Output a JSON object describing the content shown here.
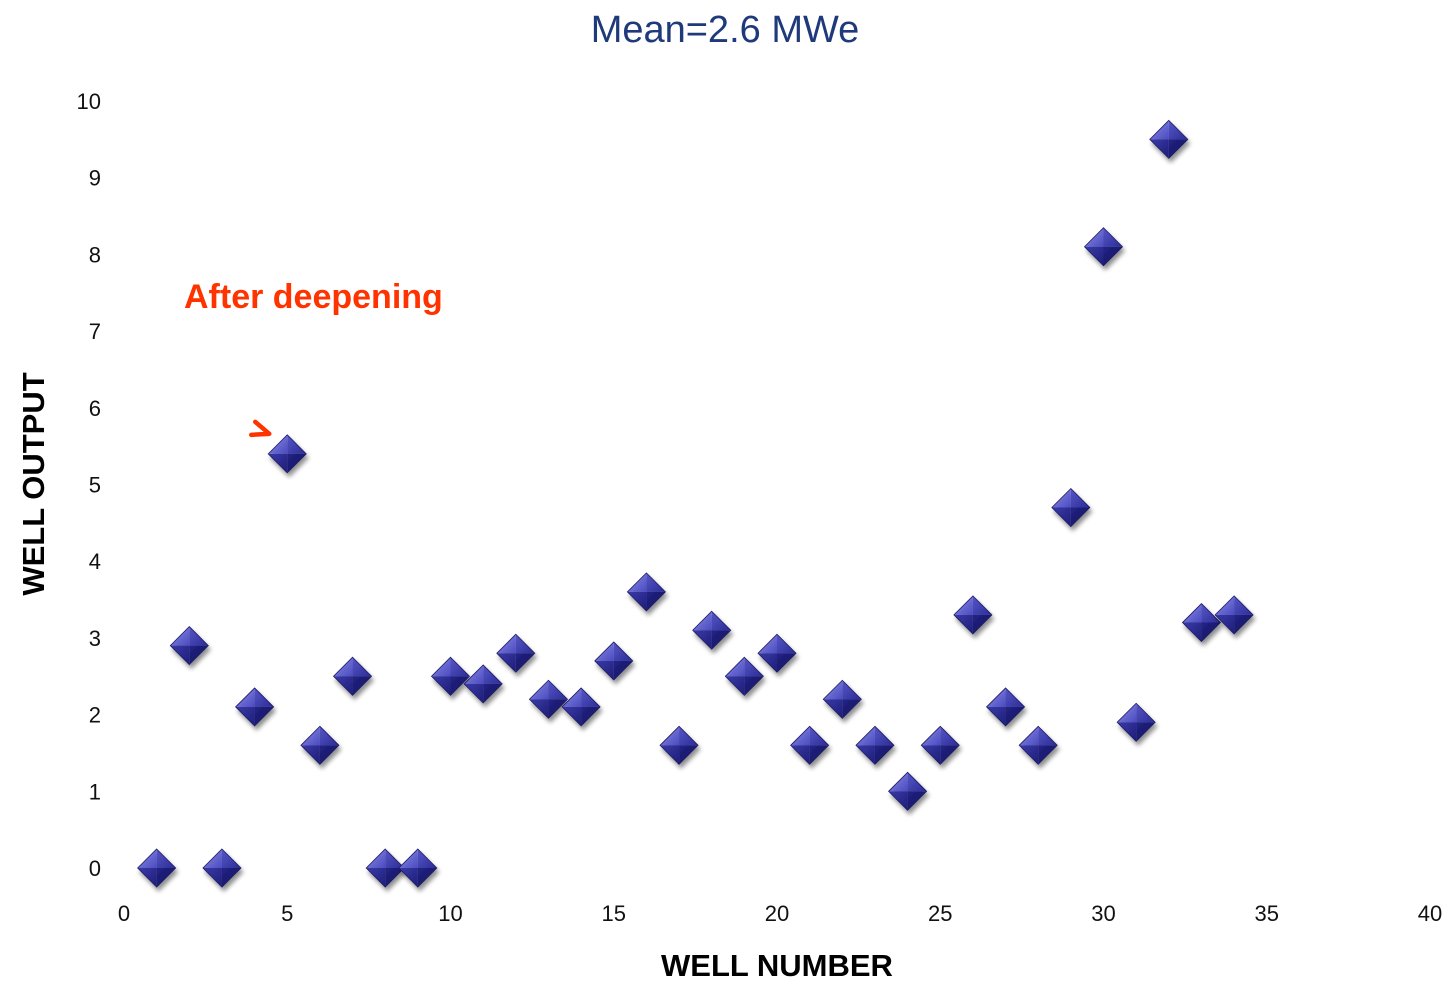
{
  "chart_data": {
    "type": "scatter",
    "title": "Mean=2.6 MWe",
    "xlabel": "WELL NUMBER",
    "ylabel": "WELL OUTPUT",
    "xlim": [
      0,
      40
    ],
    "ylim": [
      0,
      10
    ],
    "x_ticks": [
      0,
      5,
      10,
      15,
      20,
      25,
      30,
      35,
      40
    ],
    "y_ticks": [
      0,
      1,
      2,
      3,
      4,
      5,
      6,
      7,
      8,
      9,
      10
    ],
    "grid": false,
    "legend": "none",
    "marker": "diamond",
    "marker_color": "#2e2e9a",
    "points": [
      {
        "x": 1,
        "y": 0.0
      },
      {
        "x": 2,
        "y": 2.9
      },
      {
        "x": 3,
        "y": 0.0
      },
      {
        "x": 4,
        "y": 2.1
      },
      {
        "x": 5,
        "y": 5.4
      },
      {
        "x": 6,
        "y": 1.6
      },
      {
        "x": 7,
        "y": 2.5
      },
      {
        "x": 8,
        "y": 0.0
      },
      {
        "x": 9,
        "y": 0.0
      },
      {
        "x": 10,
        "y": 2.5
      },
      {
        "x": 11,
        "y": 2.4
      },
      {
        "x": 12,
        "y": 2.8
      },
      {
        "x": 13,
        "y": 2.2
      },
      {
        "x": 14,
        "y": 2.1
      },
      {
        "x": 15,
        "y": 2.7
      },
      {
        "x": 16,
        "y": 3.6
      },
      {
        "x": 17,
        "y": 1.6
      },
      {
        "x": 18,
        "y": 3.1
      },
      {
        "x": 19,
        "y": 2.5
      },
      {
        "x": 20,
        "y": 2.8
      },
      {
        "x": 21,
        "y": 1.6
      },
      {
        "x": 22,
        "y": 2.2
      },
      {
        "x": 23,
        "y": 1.6
      },
      {
        "x": 24,
        "y": 1.0
      },
      {
        "x": 25,
        "y": 1.6
      },
      {
        "x": 26,
        "y": 3.3
      },
      {
        "x": 27,
        "y": 2.1
      },
      {
        "x": 28,
        "y": 1.6
      },
      {
        "x": 29,
        "y": 4.7
      },
      {
        "x": 30,
        "y": 8.1
      },
      {
        "x": 31,
        "y": 1.9
      },
      {
        "x": 32,
        "y": 9.5
      },
      {
        "x": 33,
        "y": 3.2
      },
      {
        "x": 34,
        "y": 3.3
      }
    ],
    "annotations": [
      {
        "text": "After deepening",
        "color": "#ff3300",
        "points_to": {
          "x": 5,
          "y": 5.4
        }
      }
    ]
  }
}
